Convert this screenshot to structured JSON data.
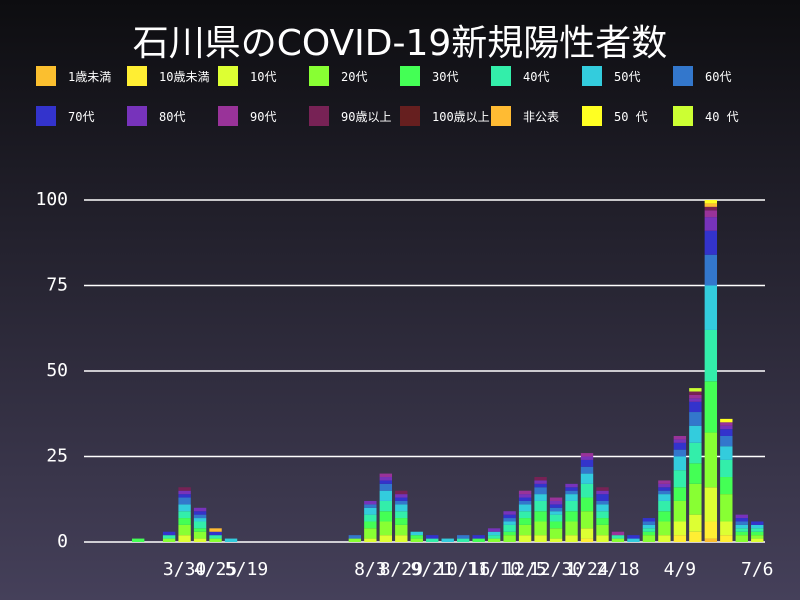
{
  "chart_data": {
    "type": "bar",
    "stacked": true,
    "title": "石川県のCOVID-19新規陽性者数",
    "categories": [
      null,
      null,
      null,
      null,
      null,
      null,
      "3/30",
      null,
      "4/25",
      null,
      "5/19",
      null,
      null,
      null,
      null,
      null,
      null,
      null,
      "8/3",
      null,
      "8/29",
      null,
      "9/21",
      null,
      "10/16",
      null,
      "11/10",
      null,
      "12/5",
      null,
      "12/30",
      null,
      "1/24",
      null,
      "2/18",
      null,
      null,
      null,
      "4/9",
      null,
      null,
      null,
      null,
      "7/6"
    ],
    "ylim": [
      0,
      100
    ],
    "yticks": [
      0,
      25,
      50,
      75,
      100
    ],
    "grid": true,
    "series": [
      {
        "name": "1歳未満",
        "color": "#fbbf2f",
        "values": [
          0,
          0,
          0,
          0,
          0,
          0,
          0,
          0,
          0,
          0,
          0,
          0,
          0,
          0,
          0,
          0,
          0,
          0,
          0,
          0,
          0,
          0,
          0,
          0,
          0,
          0,
          0,
          0,
          0,
          0,
          0,
          0,
          0,
          0,
          0,
          0,
          0,
          0,
          0,
          0,
          1,
          0,
          0,
          0
        ]
      },
      {
        "name": "10歳未満",
        "color": "#ffee33",
        "values": [
          0,
          0,
          0,
          0,
          0,
          0,
          0,
          0,
          0,
          0,
          0,
          0,
          0,
          0,
          0,
          0,
          0,
          0,
          0,
          0,
          0,
          0,
          0,
          0,
          0,
          0,
          0,
          0,
          0,
          0,
          0,
          0,
          1,
          0,
          0,
          0,
          0,
          0,
          2,
          3,
          5,
          2,
          0,
          0
        ]
      },
      {
        "name": "10代",
        "color": "#ddff33",
        "values": [
          0,
          0,
          0,
          0,
          0,
          0,
          2,
          1,
          0,
          0,
          0,
          0,
          0,
          0,
          0,
          0,
          0,
          0,
          1,
          2,
          2,
          0,
          0,
          0,
          0,
          0,
          0,
          0,
          2,
          2,
          1,
          2,
          3,
          2,
          0,
          0,
          0,
          2,
          4,
          5,
          10,
          4,
          0,
          1
        ]
      },
      {
        "name": "20代",
        "color": "#88ff33",
        "values": [
          0,
          0,
          0,
          0,
          0,
          1,
          3,
          2,
          1,
          0,
          0,
          0,
          0,
          0,
          0,
          0,
          0,
          1,
          3,
          4,
          3,
          1,
          0,
          0,
          0,
          0,
          1,
          2,
          3,
          4,
          3,
          4,
          5,
          3,
          1,
          0,
          2,
          4,
          6,
          9,
          16,
          8,
          2,
          1
        ]
      },
      {
        "name": "30代",
        "color": "#44ff55",
        "values": [
          0,
          0,
          0,
          1,
          0,
          0,
          2,
          1,
          0,
          0,
          0,
          0,
          0,
          0,
          0,
          0,
          0,
          0,
          2,
          3,
          2,
          1,
          0,
          0,
          0,
          1,
          0,
          1,
          2,
          3,
          2,
          3,
          4,
          2,
          0,
          0,
          1,
          3,
          4,
          6,
          15,
          5,
          1,
          1
        ]
      },
      {
        "name": "40代",
        "color": "#33eeaa",
        "values": [
          0,
          0,
          0,
          0,
          0,
          1,
          2,
          2,
          1,
          0,
          0,
          0,
          0,
          0,
          0,
          0,
          0,
          0,
          2,
          3,
          2,
          0,
          1,
          0,
          1,
          0,
          1,
          2,
          2,
          3,
          2,
          3,
          4,
          2,
          1,
          0,
          1,
          3,
          5,
          6,
          15,
          5,
          1,
          1
        ]
      },
      {
        "name": "50代",
        "color": "#33ccdd",
        "values": [
          0,
          0,
          0,
          0,
          0,
          0,
          2,
          1,
          0,
          1,
          0,
          0,
          0,
          0,
          0,
          0,
          0,
          0,
          2,
          3,
          2,
          1,
          0,
          1,
          0,
          0,
          1,
          1,
          2,
          2,
          1,
          2,
          3,
          2,
          0,
          1,
          1,
          2,
          4,
          5,
          13,
          4,
          1,
          1
        ]
      },
      {
        "name": "60代",
        "color": "#3377cc",
        "values": [
          0,
          0,
          0,
          0,
          0,
          0,
          2,
          1,
          0,
          0,
          0,
          0,
          0,
          0,
          0,
          0,
          0,
          1,
          1,
          2,
          1,
          0,
          0,
          0,
          1,
          0,
          0,
          1,
          1,
          2,
          1,
          1,
          2,
          1,
          0,
          0,
          1,
          1,
          2,
          4,
          9,
          3,
          1,
          0
        ]
      },
      {
        "name": "70代",
        "color": "#3333cc",
        "values": [
          0,
          0,
          0,
          0,
          0,
          1,
          1,
          1,
          1,
          0,
          0,
          0,
          0,
          0,
          0,
          0,
          0,
          0,
          0,
          1,
          1,
          0,
          1,
          0,
          0,
          1,
          0,
          1,
          1,
          1,
          1,
          1,
          2,
          2,
          0,
          1,
          1,
          1,
          2,
          3,
          7,
          2,
          1,
          1
        ]
      },
      {
        "name": "80代",
        "color": "#7733bb",
        "values": [
          0,
          0,
          0,
          0,
          0,
          0,
          1,
          1,
          0,
          0,
          0,
          0,
          0,
          0,
          0,
          0,
          0,
          0,
          1,
          1,
          1,
          0,
          0,
          0,
          0,
          0,
          1,
          1,
          1,
          1,
          1,
          1,
          1,
          1,
          0,
          0,
          0,
          1,
          1,
          1,
          4,
          1,
          1,
          0
        ]
      },
      {
        "name": "90代",
        "color": "#993399",
        "values": [
          0,
          0,
          0,
          0,
          0,
          0,
          0,
          0,
          0,
          0,
          0,
          0,
          0,
          0,
          0,
          0,
          0,
          0,
          0,
          1,
          0,
          0,
          0,
          0,
          0,
          0,
          0,
          0,
          1,
          0,
          1,
          0,
          1,
          0,
          1,
          0,
          0,
          1,
          1,
          1,
          2,
          1,
          0,
          0
        ]
      },
      {
        "name": "90歳以上",
        "color": "#772255",
        "values": [
          0,
          0,
          0,
          0,
          0,
          0,
          1,
          0,
          0,
          0,
          0,
          0,
          0,
          0,
          0,
          0,
          0,
          0,
          0,
          0,
          1,
          0,
          0,
          0,
          0,
          0,
          0,
          0,
          0,
          1,
          0,
          0,
          0,
          1,
          0,
          0,
          0,
          0,
          0,
          1,
          1,
          0,
          0,
          0
        ]
      },
      {
        "name": "100歳以上",
        "color": "#661f1f",
        "values": [
          0,
          0,
          0,
          0,
          0,
          0,
          0,
          0,
          0,
          0,
          0,
          0,
          0,
          0,
          0,
          0,
          0,
          0,
          0,
          0,
          0,
          0,
          0,
          0,
          0,
          0,
          0,
          0,
          0,
          0,
          0,
          0,
          0,
          0,
          0,
          0,
          0,
          0,
          0,
          0,
          0,
          0,
          0,
          0
        ]
      },
      {
        "name": "非公表",
        "color": "#ffbb33",
        "values": [
          0,
          0,
          0,
          0,
          0,
          0,
          0,
          0,
          1,
          0,
          0,
          0,
          0,
          0,
          0,
          0,
          0,
          0,
          0,
          0,
          0,
          0,
          0,
          0,
          0,
          0,
          0,
          0,
          0,
          0,
          0,
          0,
          0,
          0,
          0,
          0,
          0,
          0,
          0,
          0,
          1,
          0,
          0,
          0
        ]
      },
      {
        "name": "50 代",
        "color": "#ffff22",
        "values": [
          0,
          0,
          0,
          0,
          0,
          0,
          0,
          0,
          0,
          0,
          0,
          0,
          0,
          0,
          0,
          0,
          0,
          0,
          0,
          0,
          0,
          0,
          0,
          0,
          0,
          0,
          0,
          0,
          0,
          0,
          0,
          0,
          0,
          0,
          0,
          0,
          0,
          0,
          0,
          0,
          1,
          1,
          0,
          0
        ]
      },
      {
        "name": "40 代",
        "color": "#ccff33",
        "values": [
          0,
          0,
          0,
          0,
          0,
          0,
          0,
          0,
          0,
          0,
          0,
          0,
          0,
          0,
          0,
          0,
          0,
          0,
          0,
          0,
          0,
          0,
          0,
          0,
          0,
          0,
          0,
          0,
          0,
          0,
          0,
          0,
          0,
          0,
          0,
          0,
          0,
          0,
          0,
          1,
          0,
          0,
          0,
          0
        ]
      }
    ]
  }
}
